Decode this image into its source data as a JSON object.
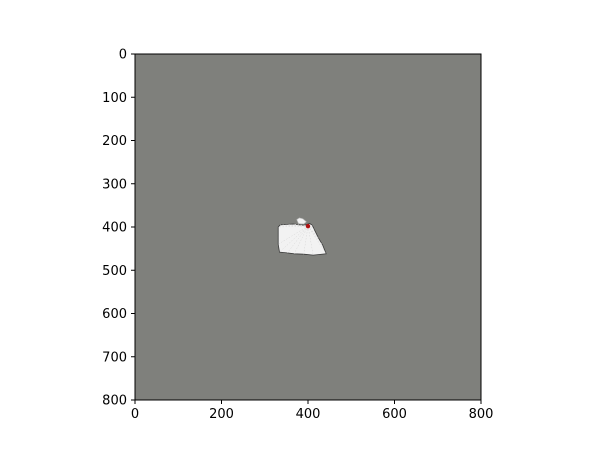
{
  "map": {
    "background_color": "#7f807c",
    "explored_color": "#f2f2f2",
    "wall_color": "#3a3a3a",
    "robot_color": "#b01010",
    "xlim": [
      0,
      800
    ],
    "ylim": [
      0,
      800
    ],
    "y_inverted": true,
    "x_ticks": [
      "0",
      "200",
      "400",
      "600",
      "800"
    ],
    "y_ticks": [
      "0",
      "100",
      "200",
      "300",
      "400",
      "500",
      "600",
      "700",
      "800"
    ],
    "explored_region": [
      [
        331,
        400
      ],
      [
        336,
        395
      ],
      [
        352,
        394
      ],
      [
        366,
        393
      ],
      [
        380,
        395
      ],
      [
        392,
        396
      ],
      [
        398,
        394
      ],
      [
        404,
        392
      ],
      [
        410,
        396
      ],
      [
        414,
        405
      ],
      [
        424,
        425
      ],
      [
        434,
        442
      ],
      [
        442,
        462
      ],
      [
        412,
        465
      ],
      [
        390,
        463
      ],
      [
        368,
        462
      ],
      [
        352,
        460
      ],
      [
        334,
        458
      ],
      [
        331,
        440
      ]
    ],
    "explored_blob": [
      [
        374,
        383
      ],
      [
        380,
        379
      ],
      [
        388,
        381
      ],
      [
        396,
        388
      ],
      [
        390,
        393
      ],
      [
        378,
        392
      ]
    ],
    "robot_position": [
      400,
      398
    ]
  }
}
